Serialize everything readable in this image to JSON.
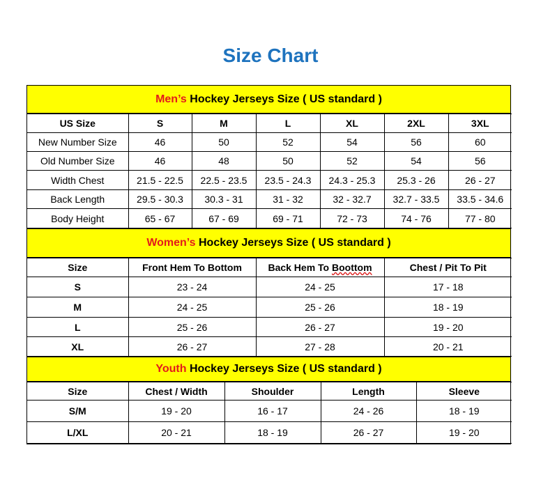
{
  "title": "Size Chart",
  "colors": {
    "title": "#1e73be",
    "band": "#ffff00",
    "band_lead": "#e31b1b"
  },
  "men": {
    "lead": "Men’s",
    "heading": " Hockey Jerseys Size ( US standard )",
    "header": [
      "US Size",
      "S",
      "M",
      "L",
      "XL",
      "2XL",
      "3XL"
    ],
    "rows": [
      [
        "New Number Size",
        "46",
        "50",
        "52",
        "54",
        "56",
        "60"
      ],
      [
        "Old Number Size",
        "46",
        "48",
        "50",
        "52",
        "54",
        "56"
      ],
      [
        "Width Chest",
        "21.5 - 22.5",
        "22.5 - 23.5",
        "23.5 - 24.3",
        "24.3 - 25.3",
        "25.3 - 26",
        "26 - 27"
      ],
      [
        "Back Length",
        "29.5 - 30.3",
        "30.3 - 31",
        "31 - 32",
        "32 - 32.7",
        "32.7 - 33.5",
        "33.5 - 34.6"
      ],
      [
        "Body Height",
        "65 - 67",
        "67 - 69",
        "69 - 71",
        "72 - 73",
        "74 - 76",
        "77 - 80"
      ]
    ]
  },
  "women": {
    "lead": "Women’s",
    "heading": " Hockey Jerseys Size ( US standard )",
    "header": [
      "Size",
      "Front Hem To Bottom",
      "Back Hem To Boottom",
      "Chest / Pit To Pit"
    ],
    "rows": [
      [
        "S",
        "23 - 24",
        "24 - 25",
        "17 - 18"
      ],
      [
        "M",
        "24 - 25",
        "25 - 26",
        "18 - 19"
      ],
      [
        "L",
        "25 - 26",
        "26 - 27",
        "19 - 20"
      ],
      [
        "XL",
        "26 - 27",
        "27 - 28",
        "20 - 21"
      ]
    ]
  },
  "youth": {
    "lead": "Youth",
    "heading": " Hockey Jerseys Size ( US standard )",
    "header": [
      "Size",
      "Chest / Width",
      "Shoulder",
      "Length",
      "Sleeve"
    ],
    "rows": [
      [
        "S/M",
        "19 - 20",
        "16 - 17",
        "24 - 26",
        "18 - 19"
      ],
      [
        "L/XL",
        "20 - 21",
        "18 - 19",
        "26 - 27",
        "19 - 20"
      ]
    ]
  }
}
